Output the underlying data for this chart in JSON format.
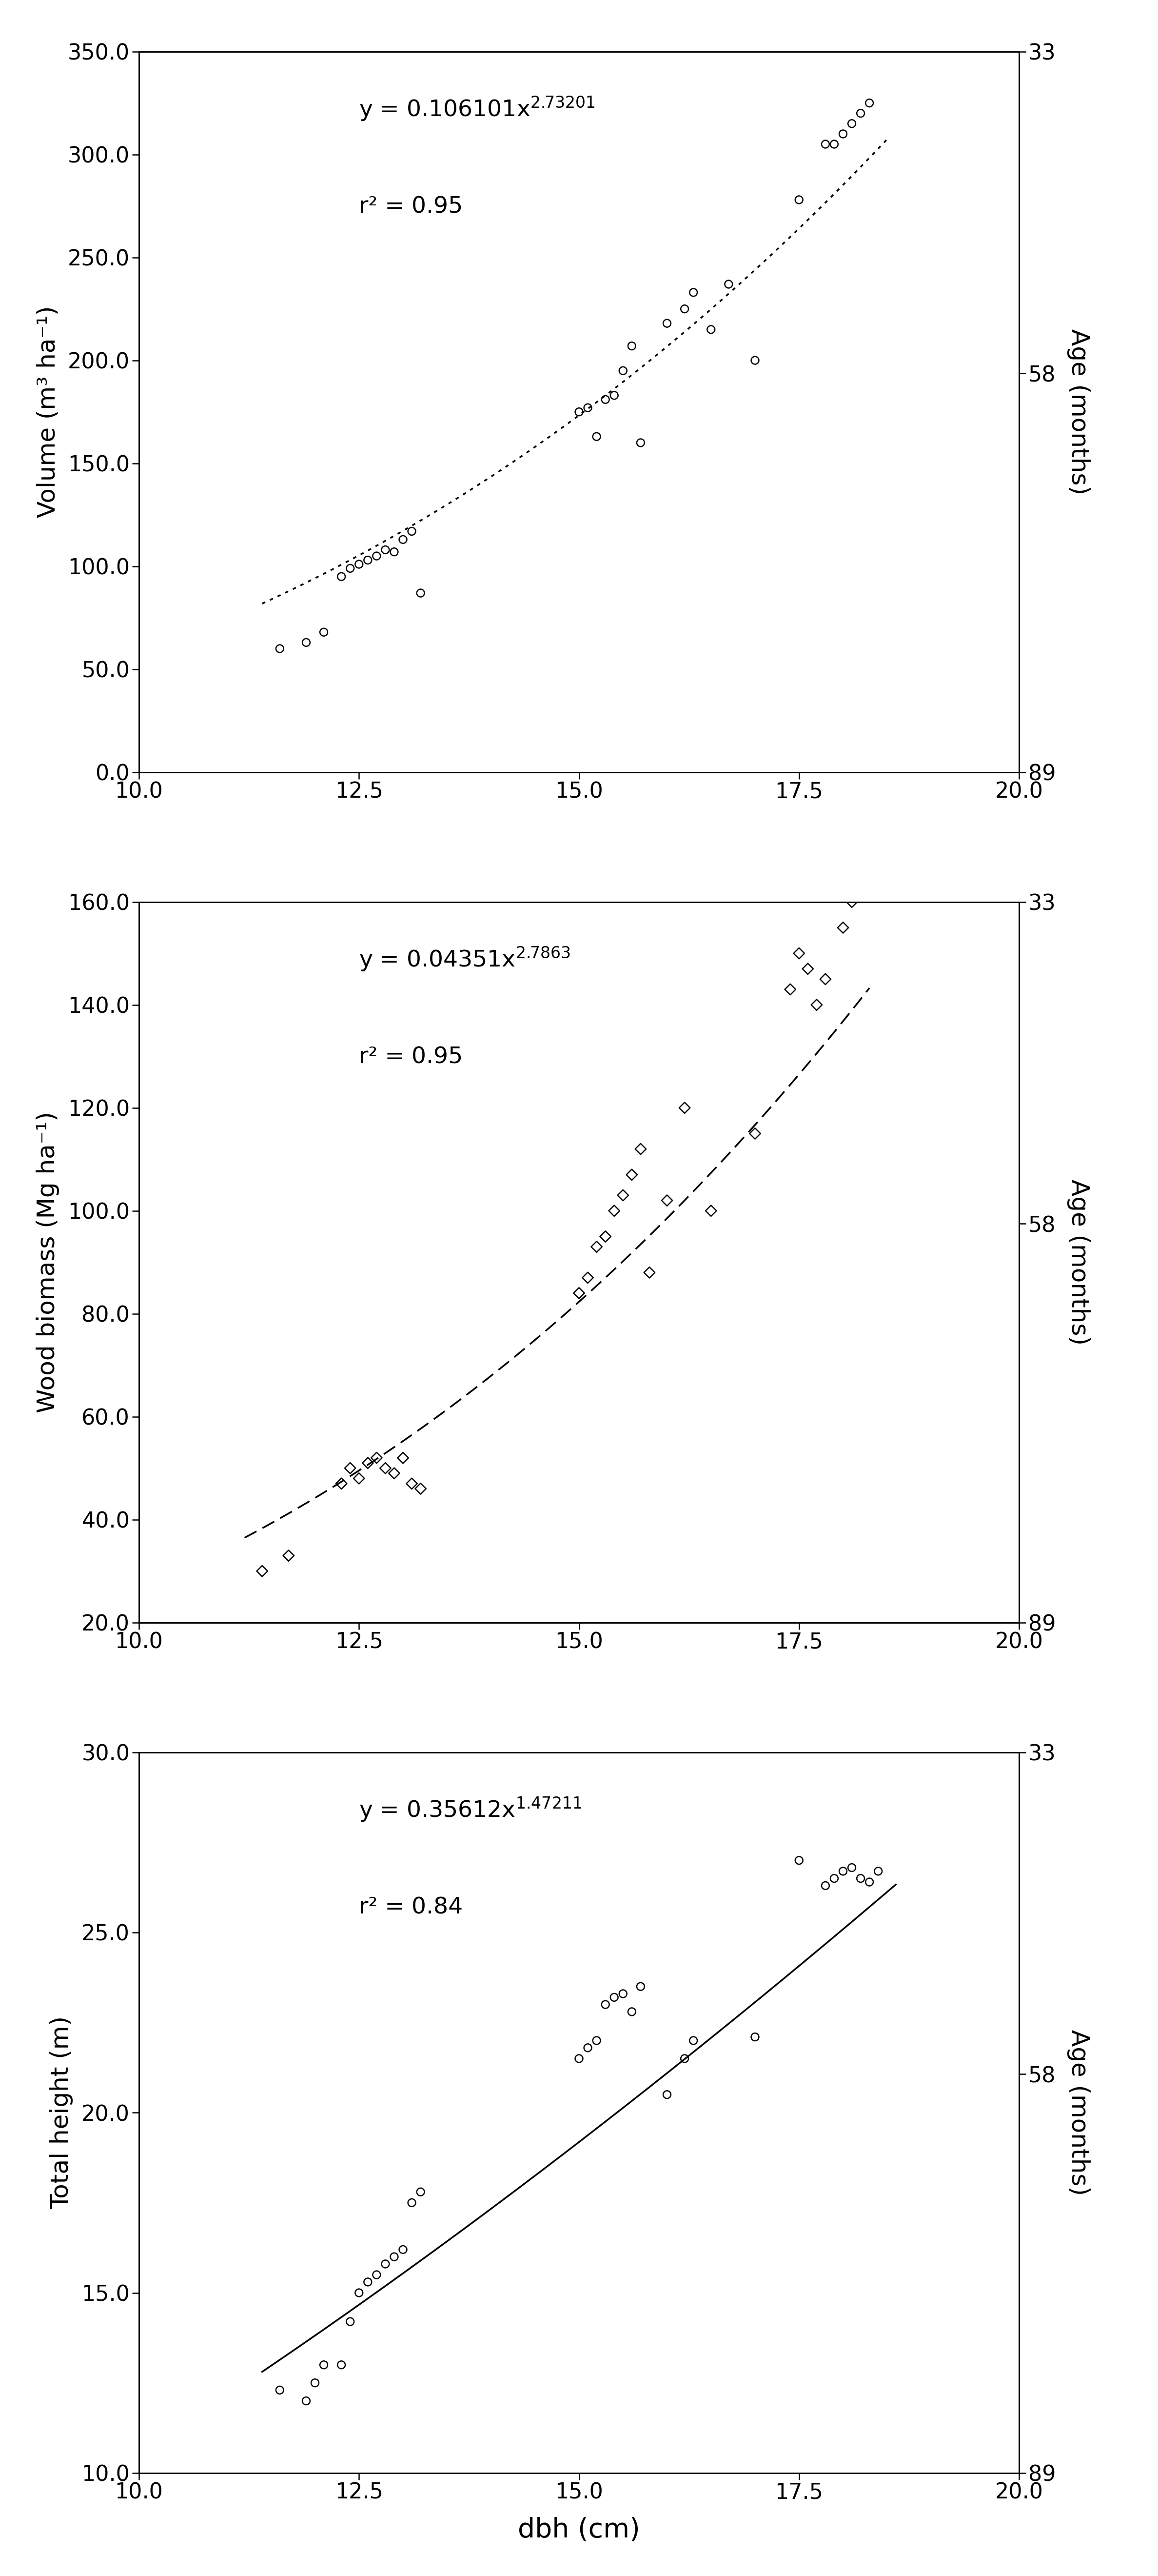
{
  "panel1": {
    "coeff_str": "0.106101",
    "exp_str": "2.73201",
    "r2_str": "r² = 0.95",
    "ylabel": "Volume (m³ ha⁻¹)",
    "ylabel2": "Age (months)",
    "ylim": [
      0.0,
      350.0
    ],
    "yticks": [
      0.0,
      50.0,
      100.0,
      150.0,
      200.0,
      250.0,
      300.0,
      350.0
    ],
    "y2ticks": [
      33,
      58,
      89
    ],
    "y2lim_top": 33,
    "y2lim_bottom": 89,
    "coeff": 0.106101,
    "exp": 2.73201,
    "line_style": "dotted",
    "marker": "o",
    "scatter_x": [
      11.6,
      11.9,
      12.1,
      12.3,
      12.4,
      12.5,
      12.6,
      12.7,
      12.8,
      12.9,
      13.0,
      13.1,
      13.2,
      15.0,
      15.1,
      15.2,
      15.3,
      15.4,
      15.5,
      15.6,
      15.7,
      16.0,
      16.2,
      16.3,
      16.5,
      16.7,
      17.0,
      17.5,
      17.8,
      17.9,
      18.0,
      18.1,
      18.2,
      18.3
    ],
    "scatter_y": [
      60,
      63,
      68,
      95,
      99,
      101,
      103,
      105,
      108,
      107,
      113,
      117,
      87,
      175,
      177,
      163,
      181,
      183,
      195,
      207,
      160,
      218,
      225,
      233,
      215,
      237,
      200,
      278,
      305,
      305,
      310,
      315,
      320,
      325
    ]
  },
  "panel2": {
    "coeff_str": "0.04351",
    "exp_str": "2.7863",
    "r2_str": "r² = 0.95",
    "ylabel": "Wood biomass (Mg ha⁻¹)",
    "ylabel2": "Age (months)",
    "ylim": [
      20.0,
      160.0
    ],
    "yticks": [
      20.0,
      40.0,
      60.0,
      80.0,
      100.0,
      120.0,
      140.0,
      160.0
    ],
    "y2ticks": [
      33,
      58,
      89
    ],
    "y2lim_top": 33,
    "y2lim_bottom": 89,
    "coeff": 0.04351,
    "exp": 2.7863,
    "line_style": "dashed",
    "marker": "D",
    "scatter_x": [
      11.4,
      11.7,
      12.3,
      12.4,
      12.5,
      12.6,
      12.7,
      12.8,
      12.9,
      13.0,
      13.1,
      13.2,
      15.0,
      15.1,
      15.2,
      15.3,
      15.4,
      15.5,
      15.6,
      15.7,
      15.8,
      16.0,
      16.2,
      16.5,
      17.0,
      17.4,
      17.5,
      17.6,
      17.7,
      17.8,
      18.0,
      18.1
    ],
    "scatter_y": [
      30,
      33,
      47,
      50,
      48,
      51,
      52,
      50,
      49,
      52,
      47,
      46,
      84,
      87,
      93,
      95,
      100,
      103,
      107,
      112,
      88,
      102,
      120,
      100,
      115,
      143,
      150,
      147,
      140,
      145,
      155,
      160
    ]
  },
  "panel3": {
    "coeff_str": "0.35612",
    "exp_str": "1.47211",
    "r2_str": "r² = 0.84",
    "ylabel": "Total height (m)",
    "ylabel2": "Age (months)",
    "ylim": [
      10.0,
      30.0
    ],
    "yticks": [
      10.0,
      15.0,
      20.0,
      25.0,
      30.0
    ],
    "y2ticks": [
      33,
      58,
      89
    ],
    "y2lim_top": 33,
    "y2lim_bottom": 89,
    "coeff": 0.35612,
    "exp": 1.47211,
    "line_style": "solid",
    "marker": "o",
    "scatter_x": [
      11.6,
      11.9,
      12.0,
      12.1,
      12.3,
      12.4,
      12.5,
      12.6,
      12.7,
      12.8,
      12.9,
      13.0,
      13.1,
      13.2,
      15.0,
      15.1,
      15.2,
      15.3,
      15.4,
      15.5,
      15.6,
      15.7,
      16.0,
      16.2,
      16.3,
      17.0,
      17.5,
      17.8,
      17.9,
      18.0,
      18.1,
      18.2,
      18.3,
      18.4
    ],
    "scatter_y": [
      12.3,
      12.0,
      12.5,
      13.0,
      13.0,
      14.2,
      15.0,
      15.3,
      15.5,
      15.8,
      16.0,
      16.2,
      17.5,
      17.8,
      21.5,
      21.8,
      22.0,
      23.0,
      23.2,
      23.3,
      22.8,
      23.5,
      20.5,
      21.5,
      22.0,
      22.1,
      27.0,
      26.3,
      26.5,
      26.7,
      26.8,
      26.5,
      26.4,
      26.7
    ]
  },
  "xlabel": "dbh (cm)",
  "xlim": [
    10.0,
    20.0
  ],
  "xticks": [
    10.0,
    12.5,
    15.0,
    17.5,
    20.0
  ],
  "bg_color": "white",
  "text_color": "black",
  "marker_size": 130,
  "marker_lw": 1.8,
  "line_color": "black",
  "line_width": 2.5,
  "eq_fontsize": 34,
  "label_fontsize": 36,
  "tick_fontsize": 32
}
